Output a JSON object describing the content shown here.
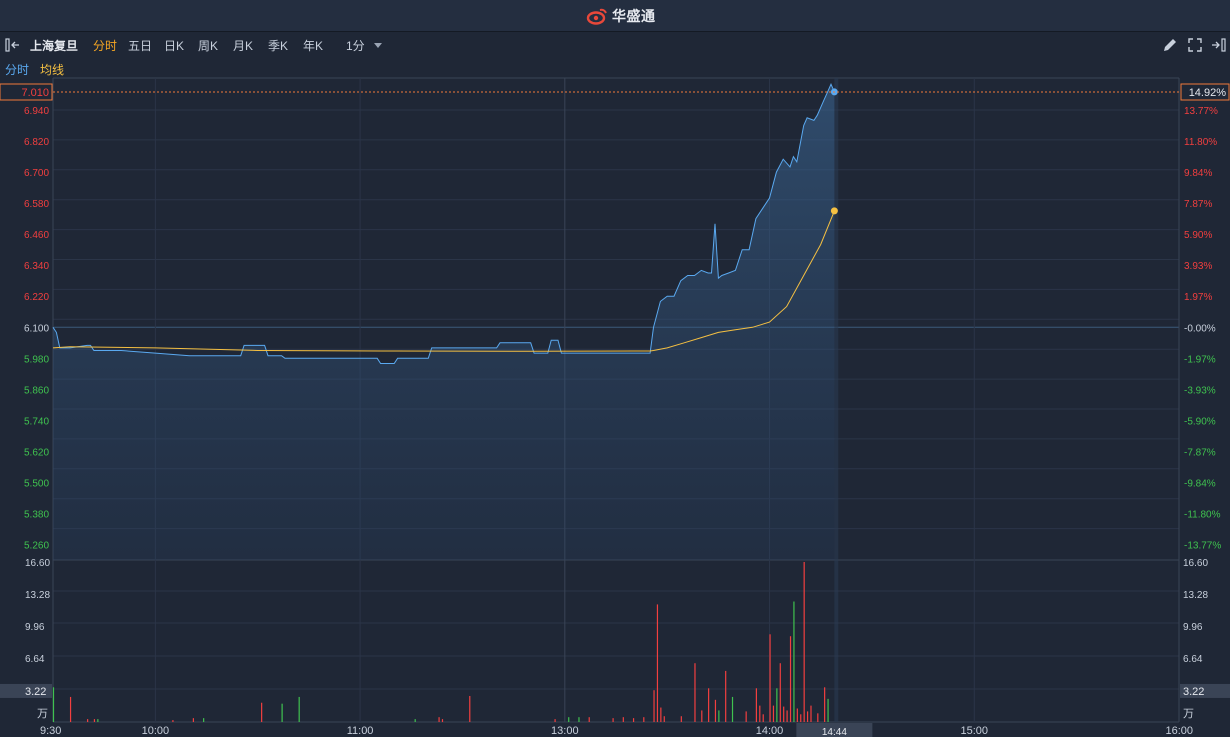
{
  "header": {
    "brand": "华盛通"
  },
  "toolbar": {
    "stock_name": "上海复旦",
    "tabs": [
      {
        "label": "分时",
        "active": true
      },
      {
        "label": "五日",
        "active": false
      },
      {
        "label": "日K",
        "active": false
      },
      {
        "label": "周K",
        "active": false
      },
      {
        "label": "月K",
        "active": false
      },
      {
        "label": "季K",
        "active": false
      },
      {
        "label": "年K",
        "active": false
      }
    ],
    "interval": "1分"
  },
  "legend": {
    "price_label": "分时",
    "avg_label": "均线"
  },
  "colors": {
    "up": "#f23f3f",
    "down": "#3fc24f",
    "price_line": "#5aa9f0",
    "avg_line": "#f5c042",
    "neutral": "#c8d0dc"
  },
  "chart_data": {
    "type": "line",
    "prev_close": 6.1,
    "price_axis": {
      "ticks": [
        "6.940",
        "6.820",
        "6.700",
        "6.580",
        "6.460",
        "6.340",
        "6.220",
        "6.100",
        "5.980",
        "5.860",
        "5.740",
        "5.620",
        "5.500",
        "5.380",
        "5.260"
      ],
      "ylim": [
        5.2,
        7.06
      ]
    },
    "pct_axis": {
      "ticks": [
        "13.77%",
        "11.80%",
        "9.84%",
        "7.87%",
        "5.90%",
        "3.93%",
        "1.97%",
        "-0.00%",
        "-1.97%",
        "-3.93%",
        "-5.90%",
        "-7.87%",
        "-9.84%",
        "-11.80%",
        "-13.77%"
      ]
    },
    "current_price_label": "7.010",
    "current_pct_label": "14.92%",
    "x_axis": {
      "labels": [
        "9:30",
        "10:00",
        "11:00",
        "13:00",
        "14:00",
        "15:00",
        "16:00"
      ],
      "cursor_label": "14:44"
    },
    "price_series": {
      "name": "分时",
      "points": [
        [
          0,
          6.1
        ],
        [
          1,
          6.08
        ],
        [
          2,
          6.02
        ],
        [
          5,
          6.02
        ],
        [
          10,
          6.03
        ],
        [
          11,
          6.03
        ],
        [
          12,
          6.01
        ],
        [
          20,
          6.01
        ],
        [
          30,
          6.0
        ],
        [
          40,
          5.99
        ],
        [
          55,
          5.99
        ],
        [
          56,
          6.03
        ],
        [
          62,
          6.03
        ],
        [
          63,
          5.99
        ],
        [
          67,
          5.99
        ],
        [
          68,
          5.98
        ],
        [
          95,
          5.98
        ],
        [
          96,
          5.96
        ],
        [
          100,
          5.96
        ],
        [
          101,
          5.98
        ],
        [
          110,
          5.98
        ],
        [
          111,
          6.02
        ],
        [
          130,
          6.02
        ],
        [
          131,
          6.04
        ],
        [
          140,
          6.04
        ],
        [
          141,
          6.0
        ],
        [
          145,
          6.0
        ],
        [
          146,
          6.05
        ],
        [
          148,
          6.05
        ],
        [
          149,
          6.0
        ],
        [
          175,
          6.0
        ],
        [
          176,
          6.1
        ],
        [
          178,
          6.2
        ],
        [
          180,
          6.22
        ],
        [
          182,
          6.22
        ],
        [
          184,
          6.28
        ],
        [
          186,
          6.3
        ],
        [
          188,
          6.3
        ],
        [
          190,
          6.32
        ],
        [
          192,
          6.31
        ],
        [
          193,
          6.31
        ],
        [
          194,
          6.5
        ],
        [
          195,
          6.29
        ],
        [
          196,
          6.3
        ],
        [
          198,
          6.31
        ],
        [
          200,
          6.32
        ],
        [
          202,
          6.4
        ],
        [
          204,
          6.4
        ],
        [
          206,
          6.52
        ],
        [
          208,
          6.56
        ],
        [
          210,
          6.6
        ],
        [
          212,
          6.7
        ],
        [
          214,
          6.75
        ],
        [
          216,
          6.72
        ],
        [
          217,
          6.76
        ],
        [
          218,
          6.74
        ],
        [
          220,
          6.88
        ],
        [
          221,
          6.91
        ],
        [
          223,
          6.9
        ],
        [
          224,
          6.92
        ],
        [
          225,
          6.95
        ],
        [
          226,
          6.98
        ],
        [
          227,
          7.01
        ],
        [
          228,
          7.04
        ],
        [
          229,
          7.01
        ]
      ]
    },
    "avg_series": {
      "name": "均线",
      "points": [
        [
          0,
          6.02
        ],
        [
          5,
          6.025
        ],
        [
          30,
          6.02
        ],
        [
          60,
          6.01
        ],
        [
          100,
          6.008
        ],
        [
          140,
          6.007
        ],
        [
          175,
          6.008
        ],
        [
          176,
          6.01
        ],
        [
          180,
          6.02
        ],
        [
          185,
          6.04
        ],
        [
          190,
          6.06
        ],
        [
          195,
          6.08
        ],
        [
          200,
          6.09
        ],
        [
          205,
          6.1
        ],
        [
          210,
          6.12
        ],
        [
          215,
          6.18
        ],
        [
          220,
          6.3
        ],
        [
          225,
          6.42
        ],
        [
          229,
          6.55
        ]
      ]
    },
    "volume_axis": {
      "ticks": [
        "16.60",
        "13.28",
        "9.96",
        "6.64",
        "3.22"
      ],
      "unit": "万",
      "ylim": [
        0,
        16.6
      ]
    },
    "volume_bars": [
      {
        "t": 0,
        "v": 3.6,
        "dir": "down"
      },
      {
        "t": 5,
        "v": 2.6,
        "dir": "up"
      },
      {
        "t": 10,
        "v": 0.3,
        "dir": "up"
      },
      {
        "t": 12,
        "v": 0.3,
        "dir": "up"
      },
      {
        "t": 13,
        "v": 0.3,
        "dir": "down"
      },
      {
        "t": 35,
        "v": 0.2,
        "dir": "up"
      },
      {
        "t": 41,
        "v": 0.4,
        "dir": "up"
      },
      {
        "t": 44,
        "v": 0.4,
        "dir": "down"
      },
      {
        "t": 61,
        "v": 2.0,
        "dir": "up"
      },
      {
        "t": 67,
        "v": 1.9,
        "dir": "down"
      },
      {
        "t": 72,
        "v": 2.6,
        "dir": "down"
      },
      {
        "t": 106,
        "v": 0.3,
        "dir": "down"
      },
      {
        "t": 113,
        "v": 0.5,
        "dir": "up"
      },
      {
        "t": 114,
        "v": 0.3,
        "dir": "up"
      },
      {
        "t": 122,
        "v": 2.7,
        "dir": "up"
      },
      {
        "t": 147,
        "v": 0.3,
        "dir": "up"
      },
      {
        "t": 151,
        "v": 0.5,
        "dir": "down"
      },
      {
        "t": 154,
        "v": 0.5,
        "dir": "down"
      },
      {
        "t": 157,
        "v": 0.5,
        "dir": "up"
      },
      {
        "t": 164,
        "v": 0.4,
        "dir": "up"
      },
      {
        "t": 167,
        "v": 0.5,
        "dir": "up"
      },
      {
        "t": 170,
        "v": 0.4,
        "dir": "up"
      },
      {
        "t": 173,
        "v": 0.5,
        "dir": "up"
      },
      {
        "t": 176,
        "v": 3.3,
        "dir": "up"
      },
      {
        "t": 177,
        "v": 12.2,
        "dir": "up"
      },
      {
        "t": 178,
        "v": 1.5,
        "dir": "up"
      },
      {
        "t": 179,
        "v": 0.6,
        "dir": "up"
      },
      {
        "t": 184,
        "v": 0.6,
        "dir": "up"
      },
      {
        "t": 188,
        "v": 6.1,
        "dir": "up"
      },
      {
        "t": 190,
        "v": 1.2,
        "dir": "up"
      },
      {
        "t": 192,
        "v": 3.5,
        "dir": "up"
      },
      {
        "t": 194,
        "v": 2.3,
        "dir": "up"
      },
      {
        "t": 195,
        "v": 1.2,
        "dir": "down"
      },
      {
        "t": 197,
        "v": 5.3,
        "dir": "up"
      },
      {
        "t": 199,
        "v": 2.6,
        "dir": "down"
      },
      {
        "t": 203,
        "v": 1.1,
        "dir": "up"
      },
      {
        "t": 206,
        "v": 3.5,
        "dir": "up"
      },
      {
        "t": 207,
        "v": 1.7,
        "dir": "up"
      },
      {
        "t": 208,
        "v": 0.8,
        "dir": "up"
      },
      {
        "t": 210,
        "v": 9.1,
        "dir": "up"
      },
      {
        "t": 211,
        "v": 1.7,
        "dir": "up"
      },
      {
        "t": 212,
        "v": 3.5,
        "dir": "down"
      },
      {
        "t": 213,
        "v": 6.1,
        "dir": "up"
      },
      {
        "t": 214,
        "v": 1.6,
        "dir": "up"
      },
      {
        "t": 215,
        "v": 1.2,
        "dir": "up"
      },
      {
        "t": 216,
        "v": 8.9,
        "dir": "up"
      },
      {
        "t": 217,
        "v": 12.5,
        "dir": "down"
      },
      {
        "t": 218,
        "v": 1.4,
        "dir": "up"
      },
      {
        "t": 219,
        "v": 0.8,
        "dir": "up"
      },
      {
        "t": 220,
        "v": 16.6,
        "dir": "up"
      },
      {
        "t": 221,
        "v": 1.1,
        "dir": "up"
      },
      {
        "t": 222,
        "v": 1.7,
        "dir": "up"
      },
      {
        "t": 224,
        "v": 0.9,
        "dir": "up"
      },
      {
        "t": 226,
        "v": 3.6,
        "dir": "up"
      },
      {
        "t": 227,
        "v": 2.4,
        "dir": "down"
      }
    ]
  }
}
